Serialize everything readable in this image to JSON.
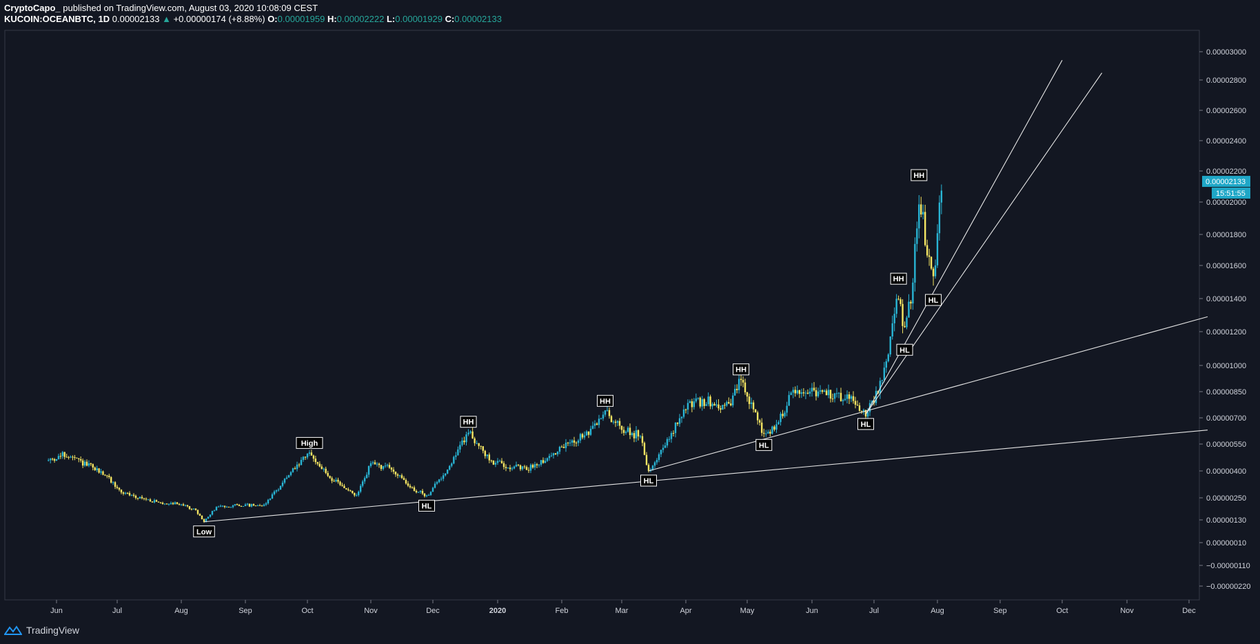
{
  "header": {
    "publisher": "CryptoCapo_",
    "published_text": "published on TradingView.com, August 03, 2020 10:08:09 CEST",
    "symbol": "KUCOIN:OCEANBTC, 1D",
    "last": "0.00002133",
    "change_arrow": "▲",
    "change": "+0.00000174 (+8.88%)",
    "o_label": "O:",
    "o_value": "0.00001959",
    "h_label": "H:",
    "h_value": "0.00002222",
    "l_label": "L:",
    "l_value": "0.00001929",
    "c_label": "C:",
    "c_value": "0.00002133"
  },
  "footer": {
    "brand": "TradingView",
    "logo_icon": "tradingview-logo-icon"
  },
  "colors": {
    "background": "#131722",
    "up_candle": "#29b6d6",
    "down_candle": "#f5e663",
    "price_tag": "#1fa7c7",
    "trendline": "#e6e6e6",
    "label_bg": "#000000",
    "label_fg": "#ffffff"
  },
  "chart_data": {
    "type": "candlestick",
    "symbol": "KUCOIN:OCEANBTC",
    "interval": "1D",
    "x_ticks": [
      "Jun",
      "Jul",
      "Aug",
      "Sep",
      "Oct",
      "Nov",
      "Dec",
      "2020",
      "Feb",
      "Mar",
      "Apr",
      "May",
      "Jun",
      "Jul",
      "Aug",
      "Sep",
      "Oct",
      "Nov",
      "Dec"
    ],
    "x_tick_dates": [
      "2019-06-01",
      "2019-07-01",
      "2019-08-01",
      "2019-09-01",
      "2019-10-01",
      "2019-11-01",
      "2019-12-01",
      "2020-01-01",
      "2020-02-01",
      "2020-03-01",
      "2020-04-01",
      "2020-05-01",
      "2020-06-01",
      "2020-07-01",
      "2020-08-01",
      "2020-09-01",
      "2020-10-01",
      "2020-11-01",
      "2020-12-01"
    ],
    "y_ticks": [
      "0.00003000",
      "0.00002800",
      "0.00002600",
      "0.00002400",
      "0.00002200",
      "0.00002000",
      "0.00001800",
      "0.00001600",
      "0.00001400",
      "0.00001200",
      "0.00001000",
      "0.00000850",
      "0.00000700",
      "0.00000550",
      "0.00000400",
      "0.00000250",
      "0.00000130",
      "0.00000010",
      "−0.00000110",
      "−0.00000220"
    ],
    "y_scale": "log-offset",
    "last_price": "0.00002133",
    "countdown": "15:51:55",
    "price_path": [
      [
        "2019-05-28",
        4.6e-06
      ],
      [
        "2019-06-05",
        4.9e-06
      ],
      [
        "2019-06-15",
        4.4e-06
      ],
      [
        "2019-06-25",
        3.8e-06
      ],
      [
        "2019-07-03",
        2.8e-06
      ],
      [
        "2019-07-12",
        2.5e-06
      ],
      [
        "2019-07-22",
        2.2e-06
      ],
      [
        "2019-07-31",
        2.2e-06
      ],
      [
        "2019-08-08",
        1.8e-06
      ],
      [
        "2019-08-12",
        1.2e-06
      ],
      [
        "2019-08-18",
        2e-06
      ],
      [
        "2019-08-28",
        2.1e-06
      ],
      [
        "2019-09-10",
        2.1e-06
      ],
      [
        "2019-09-20",
        3.5e-06
      ],
      [
        "2019-10-02",
        5e-06
      ],
      [
        "2019-10-12",
        3.6e-06
      ],
      [
        "2019-10-25",
        2.6e-06
      ],
      [
        "2019-11-01",
        4.4e-06
      ],
      [
        "2019-11-10",
        4.2e-06
      ],
      [
        "2019-11-20",
        3.1e-06
      ],
      [
        "2019-11-28",
        2.6e-06
      ],
      [
        "2019-12-08",
        4.1e-06
      ],
      [
        "2019-12-18",
        6.2e-06
      ],
      [
        "2019-12-28",
        4.6e-06
      ],
      [
        "2020-01-05",
        4.3e-06
      ],
      [
        "2020-01-15",
        4.1e-06
      ],
      [
        "2020-01-25",
        4.7e-06
      ],
      [
        "2020-02-05",
        5.6e-06
      ],
      [
        "2020-02-15",
        6.2e-06
      ],
      [
        "2020-02-22",
        7.4e-06
      ],
      [
        "2020-03-01",
        6.3e-06
      ],
      [
        "2020-03-10",
        6e-06
      ],
      [
        "2020-03-14",
        4e-06
      ],
      [
        "2020-03-22",
        5.4e-06
      ],
      [
        "2020-04-02",
        7.8e-06
      ],
      [
        "2020-04-12",
        7.9e-06
      ],
      [
        "2020-04-22",
        7.6e-06
      ],
      [
        "2020-04-28",
        9.2e-06
      ],
      [
        "2020-05-04",
        7.4e-06
      ],
      [
        "2020-05-09",
        6e-06
      ],
      [
        "2020-05-16",
        6.7e-06
      ],
      [
        "2020-05-22",
        8.5e-06
      ],
      [
        "2020-06-01",
        8.6e-06
      ],
      [
        "2020-06-12",
        8.2e-06
      ],
      [
        "2020-06-20",
        8.2e-06
      ],
      [
        "2020-06-27",
        7.2e-06
      ],
      [
        "2020-07-03",
        8.5e-06
      ],
      [
        "2020-07-08",
        1.05e-05
      ],
      [
        "2020-07-13",
        1.45e-05
      ],
      [
        "2020-07-16",
        1.2e-05
      ],
      [
        "2020-07-20",
        1.5e-05
      ],
      [
        "2020-07-23",
        2.05e-05
      ],
      [
        "2020-07-27",
        1.7e-05
      ],
      [
        "2020-07-30",
        1.5e-05
      ],
      [
        "2020-08-03",
        2.13e-05
      ]
    ],
    "annotations": [
      {
        "text": "Low",
        "date": "2019-08-12",
        "price": 1.2e-06,
        "pos": "below"
      },
      {
        "text": "High",
        "date": "2019-10-02",
        "price": 5.1e-06,
        "pos": "above"
      },
      {
        "text": "HL",
        "date": "2019-11-28",
        "price": 2.6e-06,
        "pos": "below"
      },
      {
        "text": "HH",
        "date": "2019-12-18",
        "price": 6.3e-06,
        "pos": "above"
      },
      {
        "text": "HH",
        "date": "2020-02-22",
        "price": 7.5e-06,
        "pos": "above"
      },
      {
        "text": "HL",
        "date": "2020-03-14",
        "price": 4e-06,
        "pos": "below"
      },
      {
        "text": "HH",
        "date": "2020-04-28",
        "price": 9.3e-06,
        "pos": "above"
      },
      {
        "text": "HL",
        "date": "2020-05-09",
        "price": 6e-06,
        "pos": "below"
      },
      {
        "text": "HL",
        "date": "2020-06-27",
        "price": 7.2e-06,
        "pos": "below"
      },
      {
        "text": "HH",
        "date": "2020-07-13",
        "price": 1.47e-05,
        "pos": "above"
      },
      {
        "text": "HL",
        "date": "2020-07-16",
        "price": 1.15e-05,
        "pos": "below"
      },
      {
        "text": "HH",
        "date": "2020-07-23",
        "price": 2.12e-05,
        "pos": "above"
      },
      {
        "text": "HL",
        "date": "2020-07-30",
        "price": 1.45e-05,
        "pos": "below"
      }
    ],
    "trendlines": [
      {
        "from": [
          "2019-08-12",
          1.2e-06
        ],
        "to": [
          "2020-12-10",
          6.3e-06
        ]
      },
      {
        "from": [
          "2020-03-14",
          4e-06
        ],
        "to": [
          "2020-12-10",
          1.29e-05
        ]
      },
      {
        "from": [
          "2020-06-27",
          7.2e-06
        ],
        "to": [
          "2020-10-01",
          2.94e-05
        ]
      },
      {
        "from": [
          "2020-06-27",
          7.2e-06
        ],
        "to": [
          "2020-10-20",
          2.85e-05
        ]
      }
    ]
  }
}
